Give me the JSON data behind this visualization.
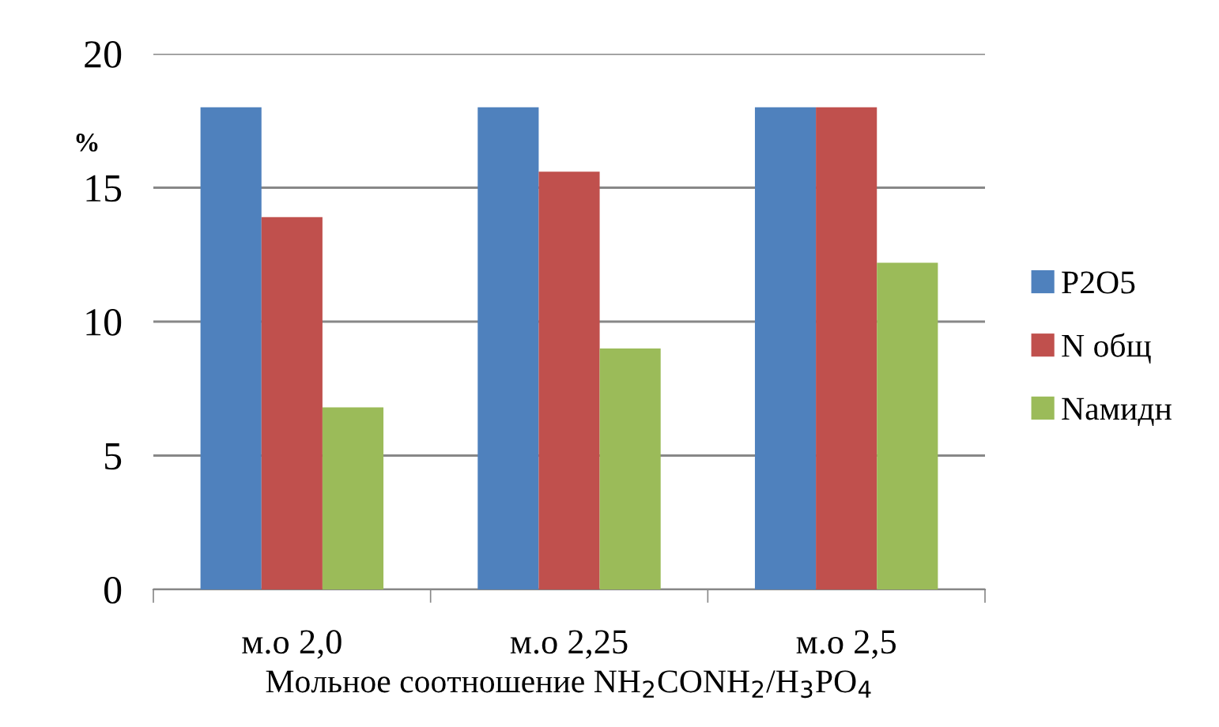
{
  "chart_data": {
    "type": "bar",
    "ylabel": "%",
    "xlabel": "Мольное соотношение NH$_{2}$CONH$_{2}$/H$_{3}$PO$_{4}$",
    "categories": [
      "м.о 2,0",
      "м.о 2,25",
      "м.о 2,5"
    ],
    "series": [
      {
        "name": "P2O5",
        "color": "#4f81bd",
        "values": [
          18.0,
          18.0,
          18.0
        ]
      },
      {
        "name": "N общ",
        "color": "#c0504d",
        "values": [
          13.9,
          15.6,
          18.0
        ]
      },
      {
        "name": "Nамидн",
        "color": "#9bbb59",
        "values": [
          6.8,
          9.0,
          12.2
        ]
      }
    ],
    "ylim": [
      0,
      20
    ],
    "yticks": [
      0,
      5,
      10,
      15,
      20
    ],
    "grid": "y",
    "legend": "right"
  }
}
